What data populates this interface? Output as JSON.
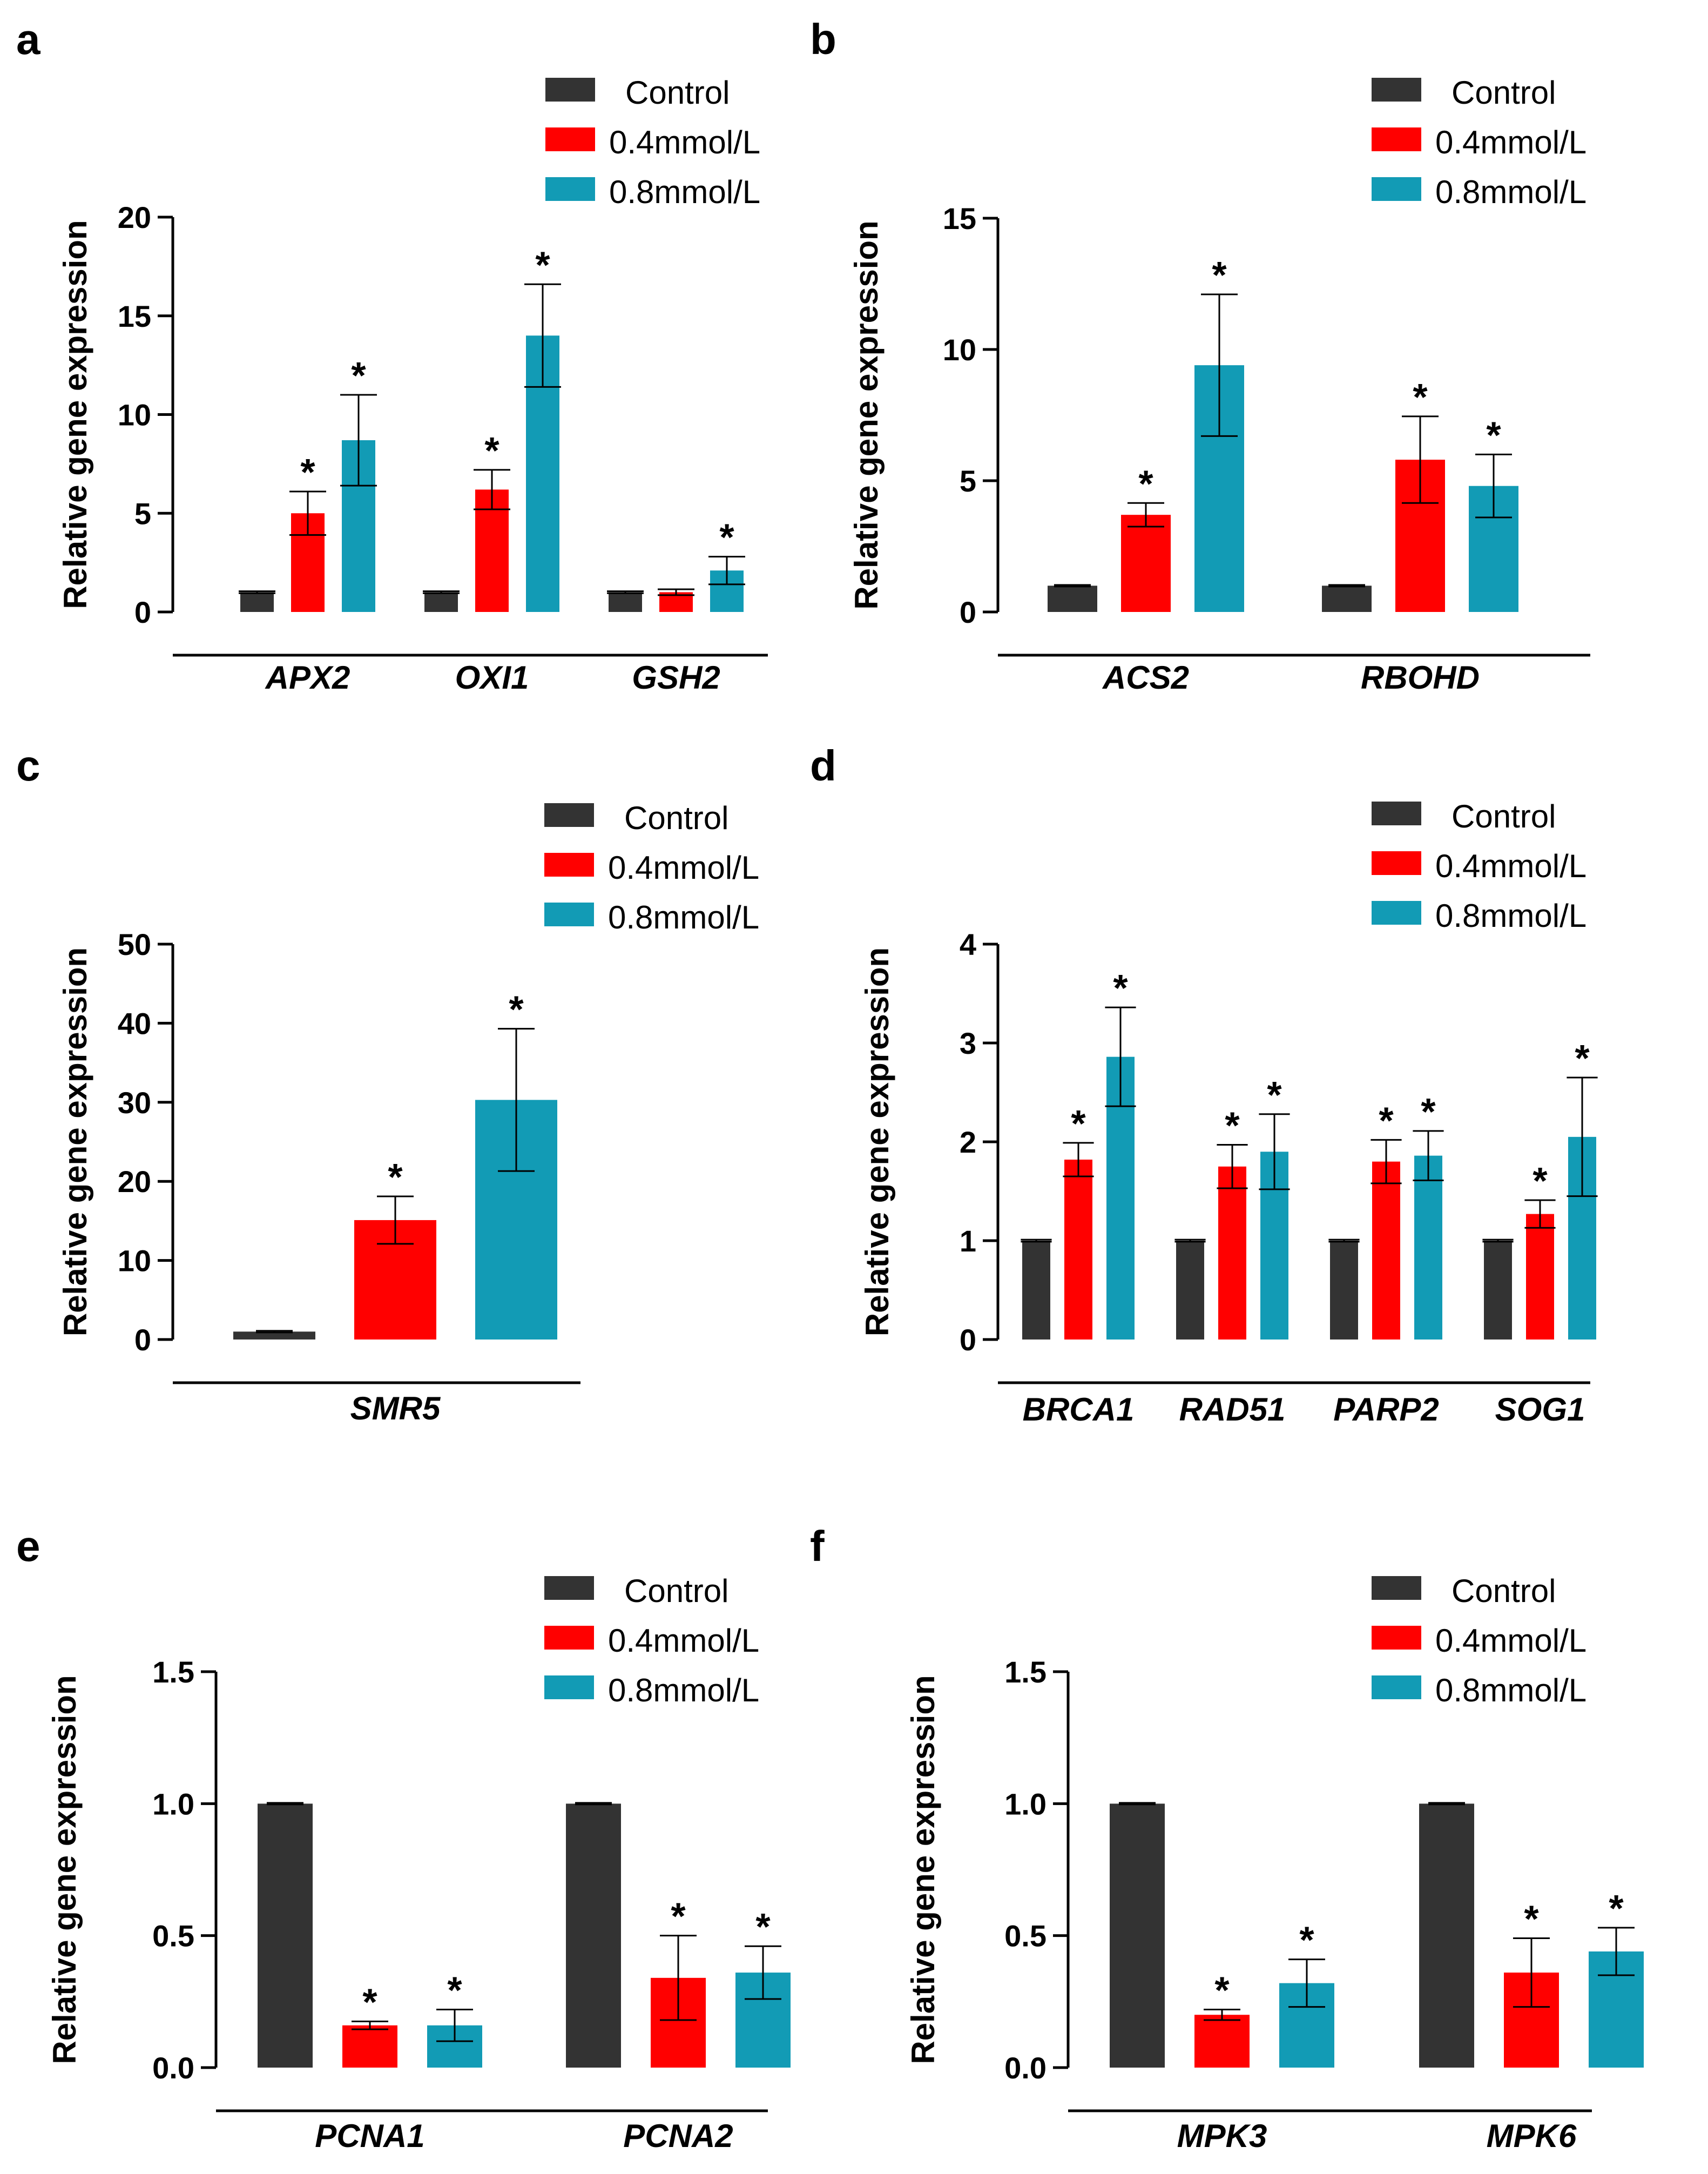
{
  "figure": {
    "colors": {
      "control": "#333333",
      "low": "#ff0000",
      "high": "#129bb5"
    },
    "legend": [
      "Control",
      "0.4mmol/L",
      "0.8mmol/L"
    ]
  },
  "chart_data": [
    {
      "panel": "a",
      "type": "bar",
      "ylabel": "Relative gene expression",
      "ylim": [
        0,
        20
      ],
      "yticks": [
        "0",
        "5",
        "10",
        "15",
        "20"
      ],
      "categories": [
        "APX2",
        "OXI1",
        "GSH2"
      ],
      "series": [
        {
          "name": "Control",
          "values": [
            1,
            1,
            1
          ],
          "errors": [
            0.05,
            0.05,
            0.05
          ],
          "sig": [
            false,
            false,
            false
          ]
        },
        {
          "name": "0.4mmol/L",
          "values": [
            5,
            6.2,
            1
          ],
          "errors": [
            1.1,
            1.0,
            0.15
          ],
          "sig": [
            true,
            true,
            false
          ]
        },
        {
          "name": "0.8mmol/L",
          "values": [
            8.7,
            14,
            2.1
          ],
          "errors": [
            2.3,
            2.6,
            0.7
          ],
          "sig": [
            true,
            true,
            true
          ]
        }
      ]
    },
    {
      "panel": "b",
      "type": "bar",
      "ylabel": "Relative gene expression",
      "ylim": [
        0,
        15
      ],
      "yticks": [
        "0",
        "5",
        "10",
        "15"
      ],
      "categories": [
        "ACS2",
        "RBOHD"
      ],
      "series": [
        {
          "name": "Control",
          "values": [
            1,
            1
          ],
          "errors": [
            0.03,
            0.03
          ],
          "sig": [
            false,
            false
          ]
        },
        {
          "name": "0.4mmol/L",
          "values": [
            3.7,
            5.8
          ],
          "errors": [
            0.45,
            1.65
          ],
          "sig": [
            true,
            true
          ]
        },
        {
          "name": "0.8mmol/L",
          "values": [
            9.4,
            4.8
          ],
          "errors": [
            2.7,
            1.2
          ],
          "sig": [
            true,
            true
          ]
        }
      ]
    },
    {
      "panel": "c",
      "type": "bar",
      "ylabel": "Relative gene expression",
      "ylim": [
        0,
        50
      ],
      "yticks": [
        "0",
        "10",
        "20",
        "30",
        "40",
        "50"
      ],
      "categories": [
        "SMR5"
      ],
      "series": [
        {
          "name": "Control",
          "values": [
            1
          ],
          "errors": [
            0.1
          ],
          "sig": [
            false
          ]
        },
        {
          "name": "0.4mmol/L",
          "values": [
            15.1
          ],
          "errors": [
            3.0
          ],
          "sig": [
            true
          ]
        },
        {
          "name": "0.8mmol/L",
          "values": [
            30.3
          ],
          "errors": [
            9.0
          ],
          "sig": [
            true
          ]
        }
      ]
    },
    {
      "panel": "d",
      "type": "bar",
      "ylabel": "Relative gene expression",
      "ylim": [
        0,
        4
      ],
      "yticks": [
        "0",
        "1",
        "2",
        "3",
        "4"
      ],
      "categories": [
        "BRCA1",
        "RAD51",
        "PARP2",
        "SOG1"
      ],
      "series": [
        {
          "name": "Control",
          "values": [
            1,
            1,
            1,
            1
          ],
          "errors": [
            0.01,
            0.01,
            0.01,
            0.01
          ],
          "sig": [
            false,
            false,
            false,
            false
          ]
        },
        {
          "name": "0.4mmol/L",
          "values": [
            1.82,
            1.75,
            1.8,
            1.27
          ],
          "errors": [
            0.17,
            0.22,
            0.22,
            0.14
          ],
          "sig": [
            true,
            true,
            true,
            true
          ]
        },
        {
          "name": "0.8mmol/L",
          "values": [
            2.86,
            1.9,
            1.86,
            2.05
          ],
          "errors": [
            0.5,
            0.38,
            0.25,
            0.6
          ],
          "sig": [
            true,
            true,
            true,
            true
          ]
        }
      ]
    },
    {
      "panel": "e",
      "type": "bar",
      "ylabel": "Relative gene expression",
      "ylim": [
        0,
        1.5
      ],
      "yticks": [
        "0.0",
        "0.5",
        "1.0",
        "1.5"
      ],
      "categories": [
        "PCNA1",
        "PCNA2"
      ],
      "series": [
        {
          "name": "Control",
          "values": [
            1,
            1
          ],
          "errors": [
            0.003,
            0.003
          ],
          "sig": [
            false,
            false
          ]
        },
        {
          "name": "0.4mmol/L",
          "values": [
            0.16,
            0.34
          ],
          "errors": [
            0.015,
            0.16
          ],
          "sig": [
            true,
            true
          ]
        },
        {
          "name": "0.8mmol/L",
          "values": [
            0.16,
            0.36
          ],
          "errors": [
            0.06,
            0.1
          ],
          "sig": [
            true,
            true
          ]
        }
      ]
    },
    {
      "panel": "f",
      "type": "bar",
      "ylabel": "Relative gene expression",
      "ylim": [
        0,
        1.5
      ],
      "yticks": [
        "0.0",
        "0.5",
        "1.0",
        "1.5"
      ],
      "categories": [
        "MPK3",
        "MPK6"
      ],
      "series": [
        {
          "name": "Control",
          "values": [
            1,
            1
          ],
          "errors": [
            0.003,
            0.003
          ],
          "sig": [
            false,
            false
          ]
        },
        {
          "name": "0.4mmol/L",
          "values": [
            0.2,
            0.36
          ],
          "errors": [
            0.02,
            0.13
          ],
          "sig": [
            true,
            true
          ]
        },
        {
          "name": "0.8mmol/L",
          "values": [
            0.32,
            0.44
          ],
          "errors": [
            0.09,
            0.09
          ],
          "sig": [
            true,
            true
          ]
        }
      ]
    }
  ]
}
